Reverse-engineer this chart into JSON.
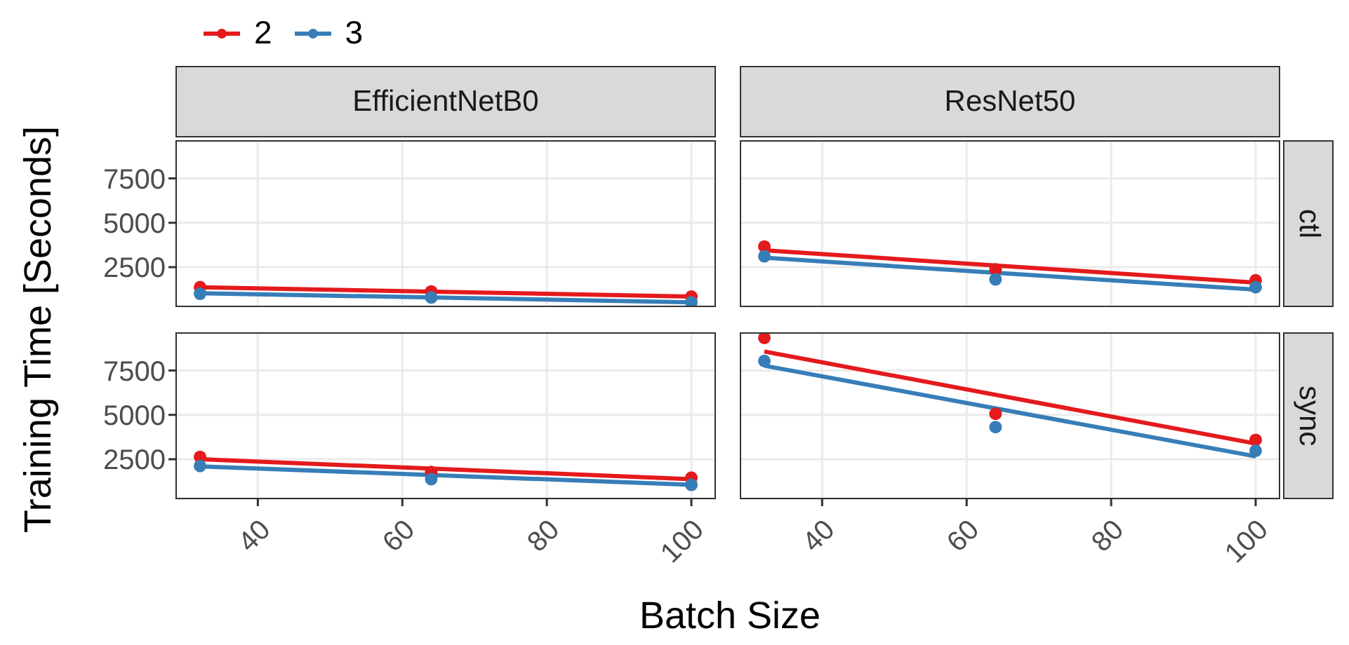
{
  "chart_data": [
    {
      "type": "scatter",
      "title": "EfficientNetB0",
      "ylabel": "Training Time [Seconds]",
      "legend": "top left",
      "tick_labels": "y",
      "grid": true,
      "marker": "circle",
      "xlim": [
        28.6,
        103.4
      ],
      "ylim": [
        250,
        9650
      ],
      "xticks": [
        40,
        60,
        80,
        100
      ],
      "yticks": [
        2500,
        5000,
        7500
      ],
      "series": [
        {
          "name": "2",
          "color": "#e41a1c",
          "x": [
            32,
            64,
            100
          ],
          "values": [
            1370,
            1130,
            840
          ]
        },
        {
          "name": "3",
          "color": "#377eb8",
          "x": [
            32,
            64,
            100
          ],
          "values": [
            1000,
            790,
            520
          ]
        },
        {
          "type": "line",
          "marker": "none",
          "color": "#e41a1c",
          "x": [
            32,
            100
          ],
          "values": [
            1370,
            840
          ]
        },
        {
          "type": "line",
          "marker": "none",
          "color": "#377eb8",
          "x": [
            32,
            100
          ],
          "values": [
            1030,
            520
          ]
        }
      ]
    },
    {
      "type": "scatter",
      "title": "ResNet50",
      "annotations": [
        "ctl"
      ],
      "tick_labels": false,
      "grid": true,
      "marker": "circle",
      "xlim": [
        28.6,
        103.4
      ],
      "ylim": [
        250,
        9650
      ],
      "xticks": [
        40,
        60,
        80,
        100
      ],
      "yticks": [
        2500,
        5000,
        7500
      ],
      "series": [
        {
          "name": "2",
          "color": "#e41a1c",
          "x": [
            32,
            64,
            100
          ],
          "values": [
            3660,
            2370,
            1760
          ]
        },
        {
          "name": "3",
          "color": "#377eb8",
          "x": [
            32,
            64,
            100
          ],
          "values": [
            3110,
            1810,
            1370
          ]
        },
        {
          "type": "line",
          "marker": "none",
          "color": "#e41a1c",
          "x": [
            32,
            100
          ],
          "values": [
            3450,
            1630
          ]
        },
        {
          "type": "line",
          "marker": "none",
          "color": "#377eb8",
          "x": [
            32,
            100
          ],
          "values": [
            3030,
            1230
          ]
        }
      ]
    },
    {
      "type": "scatter",
      "xlabel": "Batch Size",
      "grid": true,
      "marker": "circle",
      "xlim": [
        28.6,
        103.4
      ],
      "ylim": [
        250,
        9650
      ],
      "xticks": [
        40,
        60,
        80,
        100
      ],
      "yticks": [
        2500,
        5000,
        7500
      ],
      "series": [
        {
          "name": "2",
          "color": "#e41a1c",
          "x": [
            32,
            64,
            100
          ],
          "values": [
            2630,
            1780,
            1460
          ]
        },
        {
          "name": "3",
          "color": "#377eb8",
          "x": [
            32,
            64,
            100
          ],
          "values": [
            2120,
            1380,
            1060
          ]
        },
        {
          "type": "line",
          "marker": "none",
          "color": "#e41a1c",
          "x": [
            32,
            100
          ],
          "values": [
            2500,
            1380
          ]
        },
        {
          "type": "line",
          "marker": "none",
          "color": "#377eb8",
          "x": [
            32,
            100
          ],
          "values": [
            2100,
            1060
          ]
        }
      ]
    },
    {
      "type": "scatter",
      "annotations": [
        "sync"
      ],
      "tick_labels": "x",
      "grid": true,
      "marker": "circle",
      "xlim": [
        28.6,
        103.4
      ],
      "ylim": [
        250,
        9650
      ],
      "xticks": [
        40,
        60,
        80,
        100
      ],
      "yticks": [
        2500,
        5000,
        7500
      ],
      "series": [
        {
          "name": "2",
          "color": "#e41a1c",
          "x": [
            32,
            64,
            100
          ],
          "values": [
            9340,
            5060,
            3590
          ]
        },
        {
          "name": "3",
          "color": "#377eb8",
          "x": [
            32,
            64,
            100
          ],
          "values": [
            8040,
            4310,
            2980
          ]
        },
        {
          "type": "line",
          "marker": "none",
          "color": "#e41a1c",
          "x": [
            32,
            100
          ],
          "values": [
            8570,
            3380
          ]
        },
        {
          "type": "line",
          "marker": "none",
          "color": "#377eb8",
          "x": [
            32,
            100
          ],
          "values": [
            7770,
            2660
          ]
        }
      ]
    }
  ]
}
